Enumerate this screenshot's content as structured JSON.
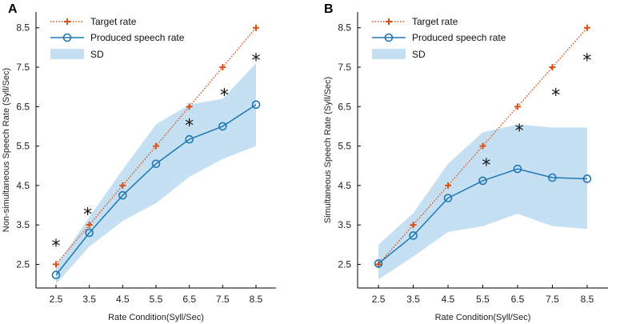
{
  "chart_data": [
    {
      "panel": "A",
      "type": "line",
      "xlabel": "Rate Condition(Syll/Sec)",
      "ylabel": "Non-simultaneous Speech Rate  (Syll/Sec)",
      "x": [
        2.5,
        3.5,
        4.5,
        5.5,
        6.5,
        7.5,
        8.5
      ],
      "x_tick_labels": [
        "2.5",
        "3.5",
        "4.5",
        "5.5",
        "6.5",
        "7.5",
        "8.5"
      ],
      "y_ticks": [
        2.5,
        3.5,
        4.5,
        5.5,
        6.5,
        7.5,
        8.5
      ],
      "y_tick_labels": [
        "2.5",
        "3.5",
        "4.5",
        "5.5",
        "6.5",
        "7.5",
        "8.5"
      ],
      "xlim": [
        1.9,
        9.1
      ],
      "ylim": [
        1.9,
        8.9
      ],
      "legend": {
        "target": "Target rate",
        "produced": "Produced speech rate",
        "sd": "SD",
        "position": "top-left"
      },
      "series": [
        {
          "name": "Target rate",
          "values": [
            2.5,
            3.5,
            4.5,
            5.5,
            6.5,
            7.5,
            8.5
          ],
          "color": "#d95319",
          "style": "dotted",
          "marker": "+"
        },
        {
          "name": "Produced speech rate",
          "values": [
            2.23,
            3.3,
            4.25,
            5.05,
            5.67,
            6.0,
            6.55
          ],
          "color": "#1f77b4",
          "style": "solid",
          "marker": "o"
        }
      ],
      "sd_band": {
        "color": "#c5e0f2",
        "lower": [
          2.0,
          2.95,
          3.6,
          4.05,
          4.72,
          5.17,
          5.5
        ],
        "upper": [
          2.45,
          3.7,
          4.9,
          6.05,
          6.55,
          6.7,
          7.6
        ]
      },
      "significance": [
        {
          "x": 2.5,
          "y": 3.0,
          "label": "*"
        },
        {
          "x": 3.45,
          "y": 3.8,
          "label": "*"
        },
        {
          "x": 6.5,
          "y": 6.05,
          "label": "*"
        },
        {
          "x": 7.55,
          "y": 6.82,
          "label": "*"
        },
        {
          "x": 8.5,
          "y": 7.7,
          "label": "*"
        }
      ]
    },
    {
      "panel": "B",
      "type": "line",
      "xlabel": "Rate Condition(Syll/Sec)",
      "ylabel": "Simultaneous  Speech Rate (Syll/Sec)",
      "x": [
        2.5,
        3.5,
        4.5,
        5.5,
        6.5,
        7.5,
        8.5
      ],
      "x_tick_labels": [
        "2.5",
        "3.5",
        "4.5",
        "5.5",
        "6.5",
        "7.5",
        "8.5"
      ],
      "y_ticks": [
        2.5,
        3.5,
        4.5,
        5.5,
        6.5,
        7.5,
        8.5
      ],
      "y_tick_labels": [
        "2.5",
        "3.5",
        "4.5",
        "5.5",
        "6.5",
        "7.5",
        "8.5"
      ],
      "xlim": [
        1.9,
        9.1
      ],
      "ylim": [
        1.9,
        8.9
      ],
      "legend": {
        "target": "Target rate",
        "produced": "Produced speech rate",
        "sd": "SD",
        "position": "top-left"
      },
      "series": [
        {
          "name": "Target rate",
          "values": [
            2.5,
            3.5,
            4.5,
            5.5,
            6.5,
            7.5,
            8.5
          ],
          "color": "#d95319",
          "style": "dotted",
          "marker": "+"
        },
        {
          "name": "Produced speech rate",
          "values": [
            2.52,
            3.23,
            4.18,
            4.62,
            4.92,
            4.7,
            4.67
          ],
          "color": "#1f77b4",
          "style": "solid",
          "marker": "o"
        }
      ],
      "sd_band": {
        "color": "#c5e0f2",
        "lower": [
          2.12,
          2.7,
          3.32,
          3.47,
          3.78,
          3.47,
          3.4
        ],
        "upper": [
          3.0,
          3.8,
          5.05,
          5.85,
          6.05,
          5.97,
          5.97
        ]
      },
      "significance": [
        {
          "x": 5.6,
          "y": 5.05,
          "label": "*"
        },
        {
          "x": 6.55,
          "y": 5.92,
          "label": "*"
        },
        {
          "x": 7.6,
          "y": 6.82,
          "label": "*"
        },
        {
          "x": 8.5,
          "y": 7.7,
          "label": "*"
        }
      ]
    }
  ],
  "colors": {
    "target": "#d95319",
    "produced": "#1f77b4",
    "sd": "#c5e0f2",
    "axis": "#000000"
  }
}
